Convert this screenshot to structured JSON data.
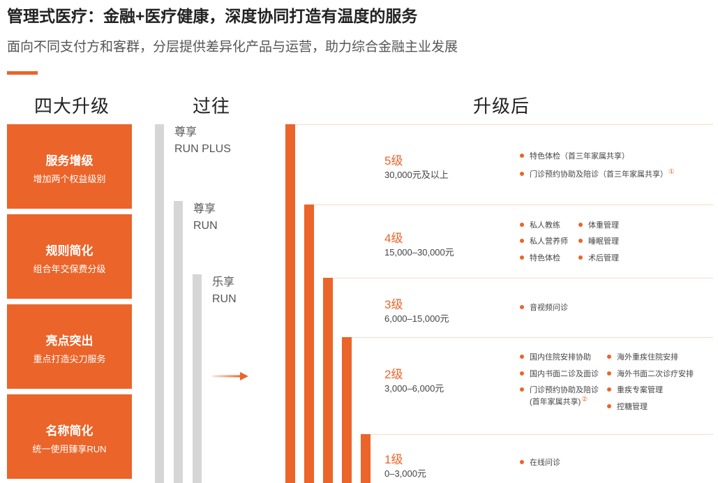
{
  "header": {
    "title": "管理式医疗：金融+医疗健康，深度协同打造有温度的服务",
    "subtitle": "面向不同支付方和客群，分层提供差异化产品与运营，助力综合金融主业发展",
    "accent_color": "#EB6429"
  },
  "columns": {
    "upgrades": "四大升级",
    "past": "过往",
    "after": "升级后"
  },
  "upgrades": [
    {
      "title": "服务增级",
      "desc": "增加两个权益级别"
    },
    {
      "title": "规则简化",
      "desc": "组合年交保费分级"
    },
    {
      "title": "亮点突出",
      "desc": "重点打造尖刀服务"
    },
    {
      "title": "名称简化",
      "desc": "统一使用臻享RUN"
    }
  ],
  "past": [
    {
      "line1": "尊享",
      "line2": "RUN PLUS"
    },
    {
      "line1": "尊享",
      "line2": "RUN"
    },
    {
      "line1": "乐享",
      "line2": "RUN"
    }
  ],
  "tiers": [
    {
      "level": "5级",
      "range": "30,000元及以上",
      "features_a": [
        "特色体检（首三年家属共享）",
        "门诊预约协助及陪诊（首三年家属共享）"
      ],
      "note_a": "①",
      "features_b": []
    },
    {
      "level": "4级",
      "range": "15,000–30,000元",
      "features_a": [
        "私人教练",
        "私人营养师",
        "特色体检"
      ],
      "features_b": [
        "体重管理",
        "睡眠管理",
        "术后管理"
      ]
    },
    {
      "level": "3级",
      "range": "6,000–15,000元",
      "features_a": [
        "音视频问诊"
      ],
      "features_b": []
    },
    {
      "level": "2级",
      "range": "3,000–6,000元",
      "features_a": [
        "国内住院安排协助",
        "国内书面二诊及面诊",
        "门诊预约协助及陪诊"
      ],
      "feature_a_sub": "(首年家属共享)",
      "note_a": "②",
      "features_b": [
        "海外重疾住院安排",
        "海外书面二次诊疗安排",
        "重疾专案管理",
        "控糖管理"
      ]
    },
    {
      "level": "1级",
      "range": "0–3,000元",
      "features_a": [
        "在线问诊"
      ],
      "features_b": []
    }
  ]
}
